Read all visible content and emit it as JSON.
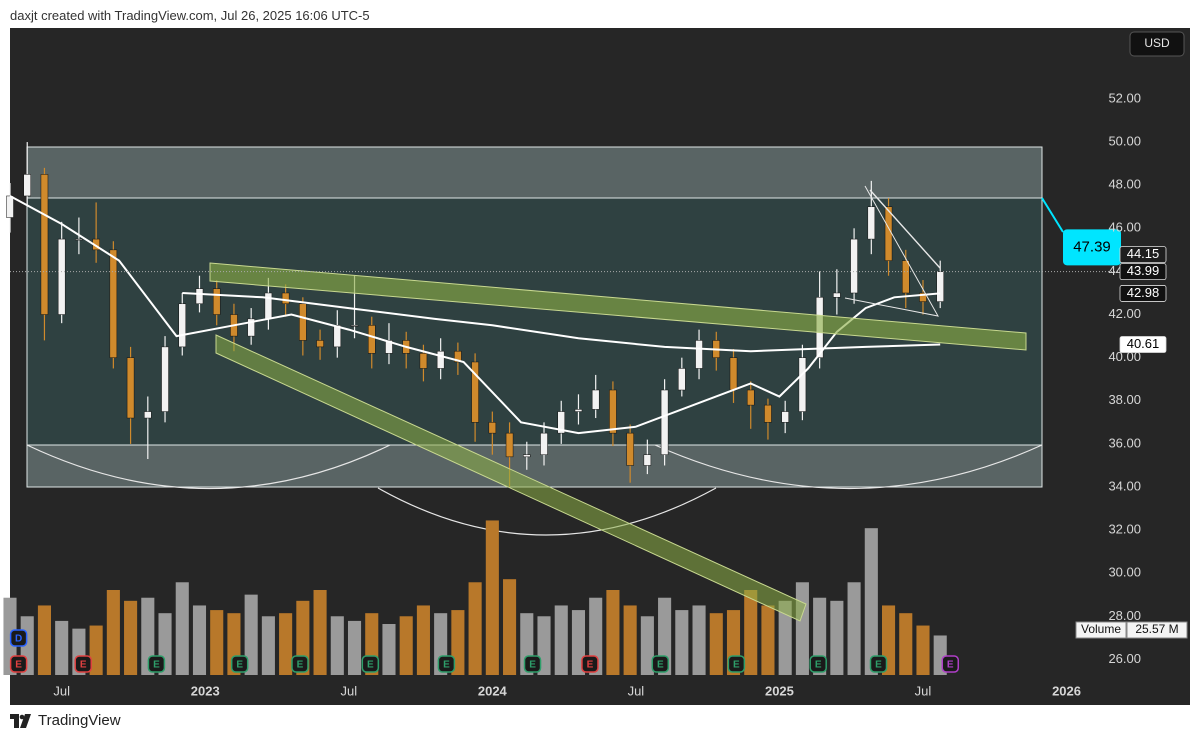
{
  "header": {
    "text": "daxjt created with TradingView.com, Jul 26, 2025 16:06 UTC-5"
  },
  "footer": {
    "brand": "TradingView"
  },
  "chart_data": {
    "type": "candlestick",
    "currency": "USD",
    "up_color": "#f2f2f2",
    "down_color": "#d08a2c",
    "x": [
      2022.32,
      2022.38,
      2022.44,
      2022.5,
      2022.56,
      2022.62,
      2022.68,
      2022.74,
      2022.8,
      2022.86,
      2022.92,
      2022.98,
      2023.04,
      2023.1,
      2023.16,
      2023.22,
      2023.28,
      2023.34,
      2023.4,
      2023.46,
      2023.52,
      2023.58,
      2023.64,
      2023.7,
      2023.76,
      2023.82,
      2023.88,
      2023.94,
      2024.0,
      2024.06,
      2024.12,
      2024.18,
      2024.24,
      2024.3,
      2024.36,
      2024.42,
      2024.48,
      2024.54,
      2024.6,
      2024.66,
      2024.72,
      2024.78,
      2024.84,
      2024.9,
      2024.96,
      2025.02,
      2025.08,
      2025.14,
      2025.2,
      2025.26,
      2025.32,
      2025.38,
      2025.44,
      2025.5,
      2025.56
    ],
    "open": [
      46.5,
      47.5,
      48.5,
      42,
      45.5,
      45.5,
      45,
      40,
      37.2,
      37.5,
      40.5,
      42.5,
      43.2,
      42,
      41,
      41.8,
      43,
      42.5,
      40.8,
      40.5,
      41.5,
      41.5,
      40.2,
      40.8,
      40.2,
      39.5,
      40.3,
      39.8,
      37,
      36.5,
      35.4,
      35.5,
      36.5,
      37.5,
      37.6,
      38.5,
      36.5,
      35,
      35.5,
      38.5,
      39.5,
      40.8,
      40,
      38.5,
      37.8,
      37,
      37.5,
      40,
      42.8,
      43,
      45.5,
      47,
      44.5,
      43,
      42.6
    ],
    "high": [
      48.1,
      50,
      48.8,
      46.3,
      46.5,
      47.2,
      45.4,
      40.5,
      38.2,
      41,
      43,
      43.8,
      43.6,
      42.5,
      42.3,
      43.7,
      43.4,
      42.8,
      41.3,
      42.2,
      43.8,
      41.9,
      41.6,
      41.2,
      40.6,
      40.9,
      40.7,
      40.2,
      37.5,
      37,
      36.1,
      37,
      38,
      38.3,
      39.2,
      38.9,
      36.9,
      36.2,
      39,
      40,
      41.3,
      41.2,
      40.4,
      38.9,
      38.1,
      38,
      40.6,
      44,
      44.1,
      46,
      48.2,
      47.4,
      45,
      43.6,
      44.5
    ],
    "low": [
      45.8,
      47,
      40.8,
      41.6,
      44.8,
      44.4,
      39.5,
      36,
      35.3,
      37,
      40.1,
      42.1,
      41.5,
      40.3,
      40.6,
      41.3,
      41.9,
      40.1,
      39.9,
      40,
      40.9,
      39.5,
      39.7,
      39.5,
      38.9,
      39,
      39.2,
      36.1,
      35.5,
      34,
      34.8,
      35,
      36,
      36.9,
      37.2,
      35.9,
      34.2,
      34.6,
      35,
      38.2,
      39,
      39.4,
      37.9,
      36.7,
      36.2,
      36.5,
      37.1,
      39.5,
      42,
      42.5,
      44.8,
      43.8,
      42.3,
      42,
      42.3
    ],
    "close": [
      47.5,
      48.5,
      42,
      45.5,
      45.5,
      45,
      40,
      37.2,
      37.5,
      40.5,
      42.5,
      43.2,
      42,
      41,
      41.8,
      43,
      42.5,
      40.8,
      40.5,
      41.5,
      41.5,
      40.2,
      40.8,
      40.2,
      39.5,
      40.3,
      39.8,
      37,
      36.5,
      35.4,
      35.5,
      36.5,
      37.5,
      37.6,
      38.5,
      36.5,
      35,
      35.5,
      38.5,
      39.5,
      40.8,
      40,
      38.5,
      37.8,
      37,
      37.5,
      40,
      42.8,
      43,
      45.5,
      47,
      44.5,
      43,
      42.6,
      43.99
    ],
    "volume": {
      "name": "Volume",
      "values": [
        50,
        38,
        45,
        35,
        30,
        32,
        55,
        48,
        50,
        40,
        60,
        45,
        42,
        40,
        52,
        38,
        40,
        48,
        55,
        38,
        35,
        40,
        33,
        38,
        45,
        40,
        42,
        60,
        100,
        62,
        40,
        38,
        45,
        42,
        50,
        55,
        45,
        38,
        50,
        42,
        45,
        40,
        42,
        55,
        45,
        48,
        60,
        50,
        48,
        60,
        95,
        45,
        40,
        32,
        25.57
      ],
      "up_color": "#9a9a9a",
      "down_color": "#b8782a",
      "ylim": [
        0,
        110
      ],
      "last": 25.57,
      "last_label": "25.57 M"
    },
    "moving_averages": [
      {
        "color": "#ffffff",
        "x": [
          2022.32,
          2022.5,
          2022.7,
          2022.9,
          2023.1,
          2023.3,
          2023.5,
          2023.7,
          2023.9,
          2024.1,
          2024.3,
          2024.5,
          2024.7,
          2024.9,
          2025.0,
          2025.1,
          2025.2,
          2025.3,
          2025.4,
          2025.56
        ],
        "values": [
          47.5,
          46.2,
          44.5,
          41,
          41.5,
          42,
          41.3,
          40.5,
          39.8,
          37,
          36.5,
          36.8,
          37.8,
          38.8,
          38.2,
          39.5,
          41.2,
          42.3,
          42.8,
          42.98
        ]
      },
      {
        "color": "#ffffff",
        "x": [
          2022.92,
          2023.2,
          2023.5,
          2023.8,
          2024.0,
          2024.3,
          2024.6,
          2024.9,
          2025.1,
          2025.3,
          2025.56
        ],
        "values": [
          43,
          42.8,
          42.3,
          41.8,
          41.5,
          40.9,
          40.5,
          40.3,
          40.4,
          40.5,
          40.61
        ]
      }
    ],
    "xlim": [
      2022.32,
      2026.43
    ],
    "xticks": [
      {
        "value": 2022.5,
        "label": "Jul"
      },
      {
        "value": 2023,
        "label": "2023"
      },
      {
        "value": 2023.5,
        "label": "Jul"
      },
      {
        "value": 2024,
        "label": "2024"
      },
      {
        "value": 2024.5,
        "label": "Jul"
      },
      {
        "value": 2025,
        "label": "2025"
      },
      {
        "value": 2025.5,
        "label": "Jul"
      },
      {
        "value": 2026,
        "label": "2026"
      }
    ],
    "ylim": [
      25.05,
      55.29
    ],
    "yticks": [
      {
        "value": 26,
        "label": "26.00"
      },
      {
        "value": 28,
        "label": "28.00"
      },
      {
        "value": 30,
        "label": "30.00"
      },
      {
        "value": 32,
        "label": "32.00"
      },
      {
        "value": 34,
        "label": "34.00"
      },
      {
        "value": 36,
        "label": "36.00"
      },
      {
        "value": 38,
        "label": "38.00"
      },
      {
        "value": 40,
        "label": "40.00"
      },
      {
        "value": 42,
        "label": "42.00"
      },
      {
        "value": 44,
        "label": "44.00"
      },
      {
        "value": 46,
        "label": "46.00"
      },
      {
        "value": 48,
        "label": "48.00"
      },
      {
        "value": 50,
        "label": "50.00"
      },
      {
        "value": 52,
        "label": "52.00"
      }
    ],
    "grid": false,
    "callout": {
      "value": 47.39,
      "color": "#00e5ff"
    },
    "price_markers": [
      {
        "value": 44.15,
        "color": "#1e1e1e",
        "text_color": "#ffffff"
      },
      {
        "value": 43.99,
        "color": "#111111",
        "text_color": "#ffffff",
        "dotted_line": true
      },
      {
        "value": 42.98,
        "color": "#111111",
        "text_color": "#ffffff"
      },
      {
        "value": 40.61,
        "color": "#ffffff",
        "text_color": "#000000"
      }
    ],
    "events": [
      {
        "label": "D",
        "x": 2022.35,
        "color": "#2962ff",
        "row": 1
      },
      {
        "label": "E",
        "x": 2022.35,
        "color": "#e04040",
        "row": 0
      },
      {
        "label": "E",
        "x": 2022.575,
        "color": "#e04040",
        "row": 0
      },
      {
        "label": "E",
        "x": 2022.83,
        "color": "#2e9e6a",
        "row": 0
      },
      {
        "label": "E",
        "x": 2023.12,
        "color": "#2e9e6a",
        "row": 0
      },
      {
        "label": "E",
        "x": 2023.33,
        "color": "#2e9e6a",
        "row": 0
      },
      {
        "label": "E",
        "x": 2023.575,
        "color": "#2e9e6a",
        "row": 0
      },
      {
        "label": "E",
        "x": 2023.84,
        "color": "#2e9e6a",
        "row": 0
      },
      {
        "label": "E",
        "x": 2024.14,
        "color": "#2e9e6a",
        "row": 0
      },
      {
        "label": "E",
        "x": 2024.34,
        "color": "#e04040",
        "row": 0
      },
      {
        "label": "E",
        "x": 2024.585,
        "color": "#2e9e6a",
        "row": 0
      },
      {
        "label": "E",
        "x": 2024.85,
        "color": "#2e9e6a",
        "row": 0
      },
      {
        "label": "E",
        "x": 2025.135,
        "color": "#2e9e6a",
        "row": 0
      },
      {
        "label": "E",
        "x": 2025.345,
        "color": "#2e9e6a",
        "row": 0
      },
      {
        "label": "E",
        "x": 2025.595,
        "color": "#b03fc8",
        "row": 0
      }
    ]
  }
}
